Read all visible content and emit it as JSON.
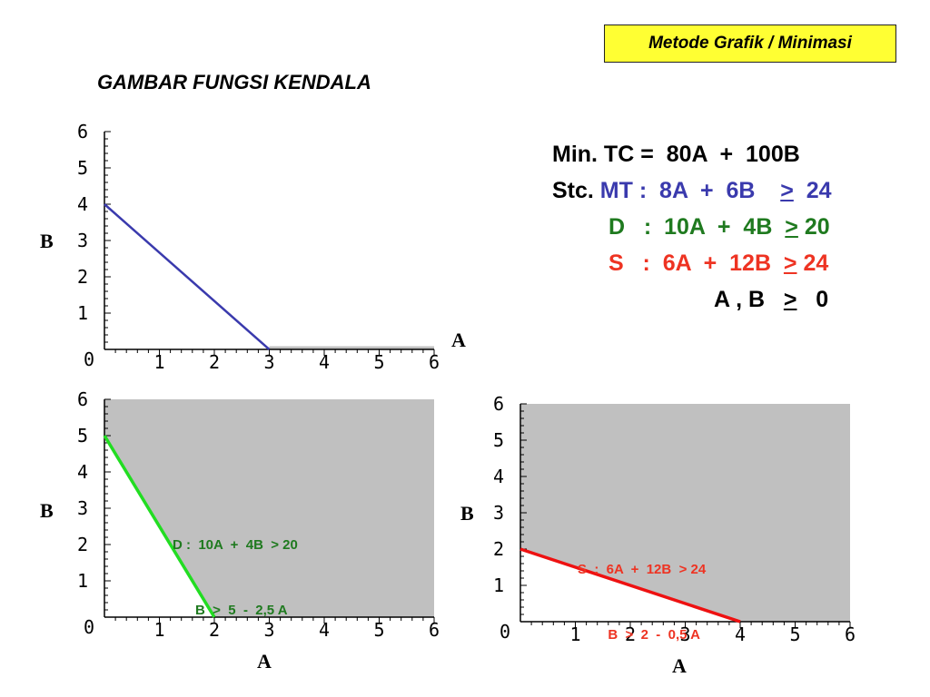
{
  "badge": "Metode Grafik / Minimasi",
  "heading": "GAMBAR FUNGSI  KENDALA",
  "model": {
    "objective": "Min. TC =  80A  +  100B",
    "stc_prefix": "Stc. ",
    "mt": {
      "name": "MT :  8A  +  6B    ",
      "ge": ">",
      "rhs": "  24"
    },
    "d": {
      "name": "D   :  10A  +  4B  ",
      "ge": ">",
      "rhs": " 20"
    },
    "s": {
      "name": "S   :  6A  +  12B  ",
      "ge": ">",
      "rhs": " 24"
    },
    "nonneg": {
      "name": "A , B   ",
      "ge": ">",
      "rhs": "   0"
    }
  },
  "colors": {
    "mt": "#3a3aad",
    "d": "#22dd22",
    "s": "#ee1111",
    "feasible": "#c0c0c0",
    "badge": "#ffff33"
  },
  "chart_data": [
    {
      "type": "line",
      "title": "",
      "xlabel": "A",
      "ylabel": "B",
      "xlim": [
        0,
        6
      ],
      "ylim": [
        0,
        6
      ],
      "xticks": [
        "0",
        "1",
        "2",
        "3",
        "4",
        "5",
        "6"
      ],
      "yticks": [
        "1",
        "2",
        "3",
        "4",
        "5",
        "6"
      ],
      "series": [
        {
          "x": [
            0,
            3
          ],
          "y": [
            4,
            0
          ]
        }
      ],
      "shaded": false
    },
    {
      "type": "area",
      "title": "",
      "xlabel": "A",
      "ylabel": "B",
      "xlim": [
        0,
        6
      ],
      "ylim": [
        0,
        6
      ],
      "xticks": [
        "0",
        "1",
        "2",
        "3",
        "4",
        "5",
        "6"
      ],
      "yticks": [
        "1",
        "2",
        "3",
        "4",
        "5",
        "6"
      ],
      "series": [
        {
          "x": [
            0,
            2
          ],
          "y": [
            5,
            0
          ]
        }
      ],
      "shaded": true,
      "annotation": [
        "D :  10A  +  4B  > 20",
        "      B  >  5  -  2,5 A"
      ]
    },
    {
      "type": "area",
      "title": "",
      "xlabel": "A",
      "ylabel": "B",
      "xlim": [
        0,
        6
      ],
      "ylim": [
        0,
        6
      ],
      "xticks": [
        "0",
        "1",
        "2",
        "3",
        "4",
        "5",
        "6"
      ],
      "yticks": [
        "1",
        "2",
        "3",
        "4",
        "5",
        "6"
      ],
      "series": [
        {
          "x": [
            0,
            4
          ],
          "y": [
            2,
            0
          ]
        }
      ],
      "shaded": true,
      "annotation": [
        "S  :  6A  +  12B  > 24",
        "        B  >  2  -  0,5 A"
      ]
    }
  ]
}
